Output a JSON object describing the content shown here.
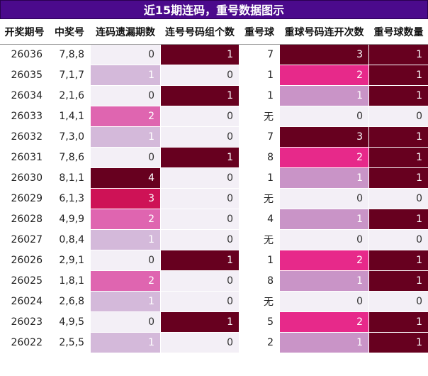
{
  "header": {
    "title": "近15期连码，重号数据图示"
  },
  "table": {
    "columns": [
      "开奖期号",
      "中奖号",
      "连码遗漏期数",
      "连号号码组个数",
      "重号球",
      "重球号码连开次数",
      "重号球数量"
    ],
    "rows": [
      [
        26036,
        "7,8,8",
        0,
        1,
        7,
        3,
        1
      ],
      [
        26035,
        "7,1,7",
        1,
        0,
        1,
        2,
        1
      ],
      [
        26034,
        "2,1,6",
        0,
        1,
        1,
        1,
        1
      ],
      [
        26033,
        "1,4,1",
        2,
        0,
        "无",
        0,
        0
      ],
      [
        26032,
        "7,3,0",
        1,
        0,
        7,
        3,
        1
      ],
      [
        26031,
        "7,8,6",
        0,
        1,
        8,
        2,
        1
      ],
      [
        26030,
        "8,1,1",
        4,
        0,
        1,
        1,
        1
      ],
      [
        26029,
        "6,1,3",
        3,
        0,
        "无",
        0,
        0
      ],
      [
        26028,
        "4,9,9",
        2,
        0,
        4,
        1,
        1
      ],
      [
        26027,
        "0,8,4",
        1,
        0,
        "无",
        0,
        0
      ],
      [
        26026,
        "2,9,1",
        0,
        1,
        1,
        2,
        1
      ],
      [
        26025,
        "1,8,1",
        2,
        0,
        8,
        1,
        1
      ],
      [
        26024,
        "2,6,8",
        1,
        0,
        "无",
        0,
        0
      ],
      [
        26023,
        "4,9,5",
        0,
        1,
        5,
        2,
        1
      ],
      [
        26022,
        "2,5,5",
        1,
        0,
        2,
        1,
        1
      ]
    ]
  }
}
